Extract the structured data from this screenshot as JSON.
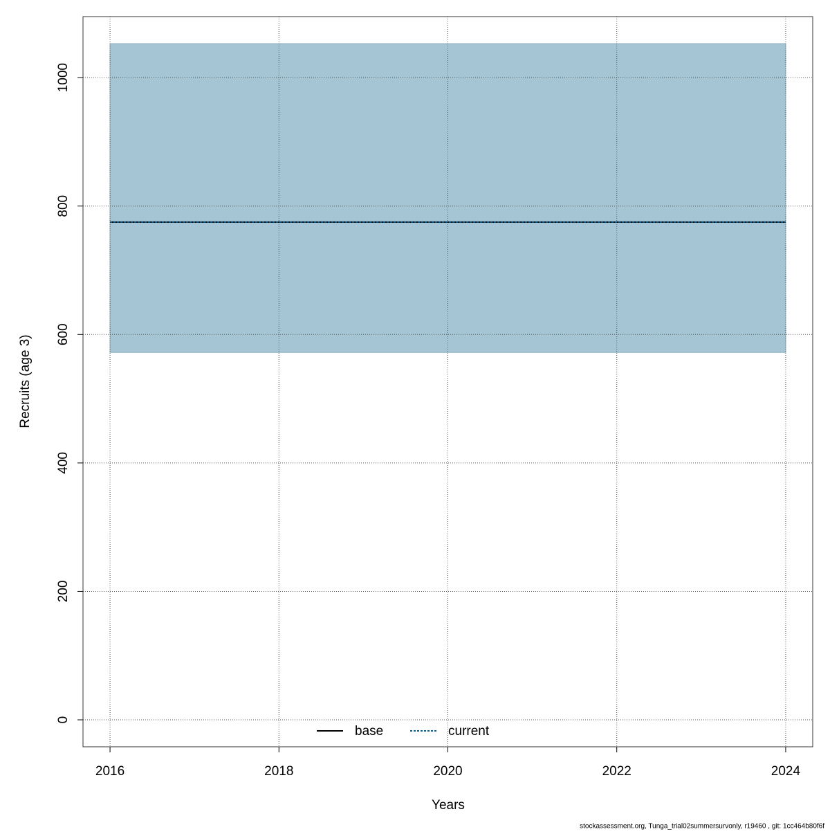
{
  "chart_data": {
    "type": "line",
    "x_label": "Years",
    "y_label": "Recruits (age 3)",
    "x": [
      2016,
      2017,
      2018,
      2019,
      2020,
      2021,
      2022,
      2023,
      2024
    ],
    "series": [
      {
        "name": "base",
        "color": "#000000",
        "dash": "solid",
        "values": [
          775,
          775,
          775,
          775,
          775,
          775,
          775,
          775,
          775
        ]
      },
      {
        "name": "current",
        "color": "#0b5d8f",
        "dash": "dotted",
        "values": [
          775,
          775,
          775,
          775,
          775,
          775,
          775,
          775,
          775
        ]
      }
    ],
    "band": {
      "color": "#a5c4d4",
      "lower": [
        572,
        572,
        572,
        572,
        572,
        572,
        572,
        572,
        572
      ],
      "upper": [
        1053,
        1053,
        1053,
        1053,
        1053,
        1053,
        1053,
        1053,
        1053
      ]
    },
    "xlim": [
      2015.68,
      2024.32
    ],
    "xticks": [
      2016,
      2018,
      2020,
      2022,
      2024
    ],
    "ylim": [
      -42,
      1095
    ],
    "yticks": [
      0,
      200,
      400,
      600,
      800,
      1000
    ],
    "grid": true,
    "legend": "bottom",
    "footnote": "stockassessment.org, Tunga_trial02summersurvonly, r19460 , git: 1cc464b80f6f"
  }
}
